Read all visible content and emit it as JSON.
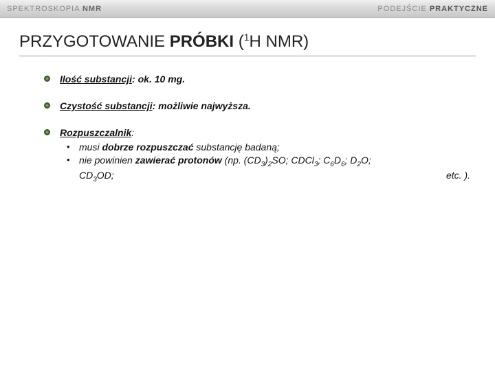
{
  "header": {
    "left_prefix": "SPEKTROSKOPIA ",
    "left_bold": "NMR",
    "right_prefix": "PODEJŚCIE ",
    "right_bold": "PRAKTYCZNE"
  },
  "title": {
    "part1": "PRZYGOTOWANIE ",
    "part2_heavy": "PRÓBKI",
    "part3_open": " (",
    "part3_sup": "1",
    "part3_rest": "H NMR)"
  },
  "bullets": [
    {
      "label_bold_italic": "Ilość substancji",
      "colon": ": ",
      "rest_bold_italic": "ok. 10 mg."
    },
    {
      "label_bold_italic": "Czystość substancji",
      "colon": ": ",
      "rest_bold_italic": "możliwie najwyższa."
    }
  ],
  "solvent": {
    "label_bold_italic": "Rozpuszczalnik",
    "colon": ":",
    "sub": [
      {
        "pieces": [
          {
            "t": "musi ",
            "cls": "italic"
          },
          {
            "t": "dobrze rozpuszczać",
            "cls": "italic bold"
          },
          {
            "t": " substancję badaną;",
            "cls": "italic"
          }
        ]
      },
      {
        "pieces": [
          {
            "t": "nie powinien ",
            "cls": "italic"
          },
          {
            "t": "zawierać protonów",
            "cls": "italic bold"
          },
          {
            "t": " (np. (CD",
            "cls": "italic"
          },
          {
            "t": "3",
            "cls": "italic subsc"
          },
          {
            "t": ")",
            "cls": "italic"
          },
          {
            "t": "2",
            "cls": "italic subsc"
          },
          {
            "t": "SO; CDCl",
            "cls": "italic"
          },
          {
            "t": "3",
            "cls": "italic subsc"
          },
          {
            "t": "; C",
            "cls": "italic"
          },
          {
            "t": "6",
            "cls": "italic subsc"
          },
          {
            "t": "D",
            "cls": "italic"
          },
          {
            "t": "6",
            "cls": "italic subsc"
          },
          {
            "t": "; D",
            "cls": "italic"
          },
          {
            "t": "2",
            "cls": "italic subsc"
          },
          {
            "t": "O;",
            "cls": "italic"
          }
        ],
        "line2_left": [
          {
            "t": "CD",
            "cls": "italic"
          },
          {
            "t": "3",
            "cls": "italic subsc"
          },
          {
            "t": "OD;",
            "cls": "italic"
          }
        ],
        "line2_right": [
          {
            "t": "etc. ).",
            "cls": "italic"
          }
        ]
      }
    ]
  },
  "bullet_icon": {
    "outer": "#3a5a2a",
    "inner": "#7aa04a"
  }
}
